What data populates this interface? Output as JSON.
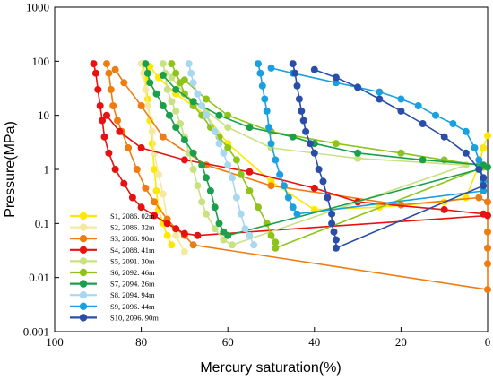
{
  "chart_data": {
    "type": "line",
    "xlabel": "Mercury saturation(%)",
    "ylabel": "Pressure(MPa)",
    "xlim": [
      100,
      0
    ],
    "ylim": [
      0.001,
      1000
    ],
    "yscale": "log",
    "x_reversed": true,
    "grid": false,
    "legend_position": "bottom-left",
    "x_ticks": [
      "100",
      "80",
      "60",
      "40",
      "20",
      "0"
    ],
    "y_ticks": [
      "0.001",
      "0.01",
      "0.1",
      "1",
      "10",
      "100",
      "1000"
    ],
    "series": [
      {
        "name": "S1, 2086. 02m",
        "color": "#ffe800",
        "points": [
          [
            0,
            4.2
          ],
          [
            1,
            2.5
          ],
          [
            2,
            1.2
          ],
          [
            5,
            0.3
          ],
          [
            10,
            0.25
          ],
          [
            25,
            0.2
          ],
          [
            40,
            0.18
          ],
          [
            50,
            0.6
          ],
          [
            60,
            3
          ],
          [
            65,
            10
          ],
          [
            72,
            25
          ],
          [
            76,
            50
          ],
          [
            78,
            80
          ],
          [
            79.5,
            90
          ],
          [
            79,
            50
          ],
          [
            78.5,
            20
          ],
          [
            78,
            8
          ],
          [
            77.5,
            3
          ],
          [
            77,
            1
          ],
          [
            76.5,
            0.4
          ],
          [
            76,
            0.18
          ],
          [
            75,
            0.1
          ],
          [
            74,
            0.06
          ],
          [
            73,
            0.04
          ]
        ]
      },
      {
        "name": "S2, 2086. 32m",
        "color": "#f5e9a0",
        "points": [
          [
            80,
            90
          ],
          [
            79.5,
            60
          ],
          [
            79,
            30
          ],
          [
            78.5,
            15
          ],
          [
            77.5,
            5
          ],
          [
            77,
            2
          ],
          [
            76,
            0.8
          ],
          [
            75,
            0.35
          ],
          [
            74,
            0.12
          ],
          [
            72,
            0.06
          ],
          [
            70,
            0.03
          ]
        ]
      },
      {
        "name": "S3, 2086. 90m",
        "color": "#f07c10",
        "points": [
          [
            88,
            90
          ],
          [
            87.5,
            60
          ],
          [
            87,
            30
          ],
          [
            86.5,
            15
          ],
          [
            85.5,
            8
          ],
          [
            84.5,
            5
          ],
          [
            83,
            2.5
          ],
          [
            81,
            1
          ],
          [
            79,
            0.45
          ],
          [
            77,
            0.25
          ],
          [
            74,
            0.12
          ],
          [
            72,
            0.08
          ],
          [
            70,
            0.06
          ],
          [
            68,
            0.04
          ],
          [
            0,
            0.006
          ],
          [
            0,
            0.018
          ],
          [
            0,
            0.035
          ],
          [
            0,
            0.07
          ],
          [
            0,
            0.25
          ],
          [
            2,
            0.3
          ],
          [
            20,
            0.22
          ],
          [
            50,
            0.5
          ],
          [
            65,
            1.2
          ],
          [
            75,
            4
          ],
          [
            80,
            15
          ],
          [
            84,
            40
          ],
          [
            86,
            70
          ]
        ]
      },
      {
        "name": "S4, 2088. 41m",
        "color": "#e81010",
        "points": [
          [
            91,
            90
          ],
          [
            90.5,
            60
          ],
          [
            90,
            30
          ],
          [
            89.5,
            15
          ],
          [
            89,
            8
          ],
          [
            88.5,
            4
          ],
          [
            87.5,
            2
          ],
          [
            86,
            1
          ],
          [
            84,
            0.55
          ],
          [
            82,
            0.3
          ],
          [
            80,
            0.2
          ],
          [
            77,
            0.14
          ],
          [
            74,
            0.1
          ],
          [
            72,
            0.08
          ],
          [
            70,
            0.065
          ],
          [
            67,
            0.06
          ],
          [
            0,
            0.14
          ],
          [
            1,
            0.15
          ],
          [
            10,
            0.18
          ],
          [
            30,
            0.25
          ],
          [
            40,
            0.45
          ],
          [
            55,
            0.9
          ],
          [
            70,
            1.5
          ],
          [
            80,
            2.5
          ],
          [
            85,
            5
          ],
          [
            88,
            10
          ]
        ]
      },
      {
        "name": "S5, 2091. 30m",
        "color": "#c8e282",
        "points": [
          [
            75,
            90
          ],
          [
            74.5,
            60
          ],
          [
            74,
            30
          ],
          [
            73,
            18
          ],
          [
            72,
            12
          ],
          [
            71,
            7
          ],
          [
            70,
            4
          ],
          [
            69,
            2
          ],
          [
            68,
            1
          ],
          [
            67,
            0.5
          ],
          [
            66,
            0.25
          ],
          [
            65,
            0.15
          ],
          [
            63,
            0.08
          ],
          [
            61,
            0.05
          ],
          [
            59,
            0.04
          ],
          [
            5,
            1.2
          ],
          [
            30,
            1.6
          ],
          [
            50,
            2.5
          ],
          [
            60,
            6
          ],
          [
            65,
            12
          ],
          [
            70,
            25
          ],
          [
            73,
            50
          ]
        ]
      },
      {
        "name": "S6, 2092. 46m",
        "color": "#8ec41a",
        "points": [
          [
            73,
            90
          ],
          [
            72,
            60
          ],
          [
            71,
            40
          ],
          [
            70,
            25
          ],
          [
            68,
            15
          ],
          [
            66,
            10
          ],
          [
            64,
            6
          ],
          [
            62,
            4
          ],
          [
            60,
            2.5
          ],
          [
            58,
            1.5
          ],
          [
            57,
            0.8
          ],
          [
            55,
            0.4
          ],
          [
            53,
            0.2
          ],
          [
            51,
            0.1
          ],
          [
            50,
            0.06
          ],
          [
            49,
            0.045
          ],
          [
            49,
            0.035
          ],
          [
            1,
            1.1
          ],
          [
            2,
            1.2
          ],
          [
            10,
            1.5
          ],
          [
            20,
            2
          ],
          [
            35,
            3
          ],
          [
            50,
            5
          ],
          [
            60,
            10
          ],
          [
            65,
            20
          ],
          [
            70,
            45
          ]
        ]
      },
      {
        "name": "S7, 2094. 26m",
        "color": "#1aa04a",
        "points": [
          [
            79,
            90
          ],
          [
            78.5,
            60
          ],
          [
            78,
            40
          ],
          [
            76.5,
            25
          ],
          [
            75,
            15
          ],
          [
            73.5,
            10
          ],
          [
            72,
            6
          ],
          [
            70,
            3.5
          ],
          [
            68,
            2
          ],
          [
            66,
            1.2
          ],
          [
            65,
            0.7
          ],
          [
            64,
            0.4
          ],
          [
            63,
            0.2
          ],
          [
            62,
            0.1
          ],
          [
            61,
            0.07
          ],
          [
            60,
            0.06
          ],
          [
            0,
            1.1
          ],
          [
            1,
            1.2
          ],
          [
            15,
            1.5
          ],
          [
            30,
            2
          ],
          [
            40,
            3
          ],
          [
            45,
            4
          ],
          [
            55,
            6
          ],
          [
            62,
            10
          ],
          [
            68,
            18
          ],
          [
            72,
            30
          ],
          [
            75,
            55
          ]
        ]
      },
      {
        "name": "S8, 2094. 94m",
        "color": "#a8d8f0",
        "points": [
          [
            69,
            90
          ],
          [
            68.5,
            60
          ],
          [
            68,
            40
          ],
          [
            67,
            25
          ],
          [
            66,
            15
          ],
          [
            65,
            10
          ],
          [
            63,
            5
          ],
          [
            62,
            3
          ],
          [
            61,
            2
          ],
          [
            60,
            1.2
          ],
          [
            59,
            0.7
          ],
          [
            58,
            0.3
          ],
          [
            57,
            0.15
          ],
          [
            56,
            0.08
          ],
          [
            55,
            0.06
          ],
          [
            54,
            0.04
          ]
        ]
      },
      {
        "name": "S9, 2096. 44m",
        "color": "#1aa0e0",
        "points": [
          [
            53,
            90
          ],
          [
            52.5,
            60
          ],
          [
            52,
            35
          ],
          [
            51.5,
            20
          ],
          [
            51,
            12
          ],
          [
            50.5,
            6
          ],
          [
            50,
            3
          ],
          [
            49,
            1.5
          ],
          [
            48,
            0.8
          ],
          [
            47,
            0.5
          ],
          [
            46,
            0.3
          ],
          [
            45,
            0.2
          ],
          [
            44,
            0.15
          ],
          [
            1,
            0.4
          ],
          [
            1,
            0.6
          ],
          [
            2,
            1.5
          ],
          [
            3,
            2.5
          ],
          [
            5,
            5
          ],
          [
            8,
            7
          ],
          [
            12,
            10
          ],
          [
            16,
            15
          ],
          [
            20,
            20
          ],
          [
            25,
            27
          ],
          [
            30,
            33
          ],
          [
            35,
            40
          ],
          [
            45,
            60
          ],
          [
            50,
            75
          ]
        ]
      },
      {
        "name": "S10, 2096. 90m",
        "color": "#2a4ea8",
        "points": [
          [
            45,
            90
          ],
          [
            44.5,
            60
          ],
          [
            44,
            35
          ],
          [
            43.5,
            20
          ],
          [
            43,
            12
          ],
          [
            42.5,
            8
          ],
          [
            42,
            5
          ],
          [
            41,
            3
          ],
          [
            40,
            2
          ],
          [
            39,
            1
          ],
          [
            38,
            0.6
          ],
          [
            37,
            0.3
          ],
          [
            36,
            0.15
          ],
          [
            36,
            0.1
          ],
          [
            35.5,
            0.07
          ],
          [
            35,
            0.05
          ],
          [
            35,
            0.035
          ],
          [
            1,
            0.5
          ],
          [
            1,
            0.7
          ],
          [
            2,
            1
          ],
          [
            5,
            2
          ],
          [
            10,
            4
          ],
          [
            15,
            7
          ],
          [
            20,
            12
          ],
          [
            25,
            20
          ],
          [
            30,
            33
          ],
          [
            35,
            50
          ],
          [
            40,
            70
          ]
        ]
      }
    ]
  }
}
